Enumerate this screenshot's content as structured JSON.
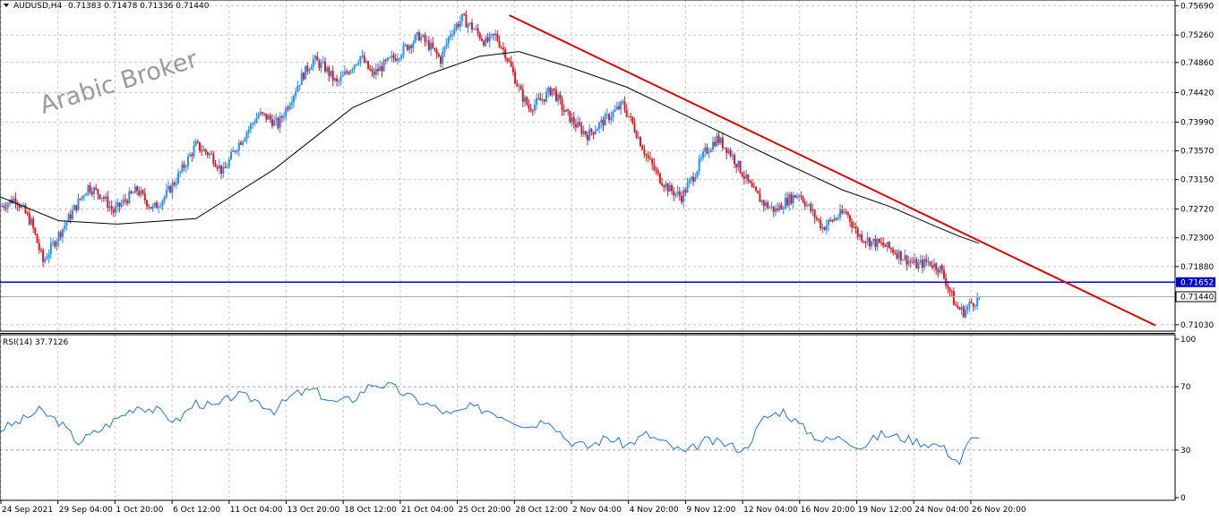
{
  "header": {
    "symbol": "AUDUSD,H4",
    "ohlc": "0.71383 0.71478 0.71336 0.71440"
  },
  "watermark": "Arabic Broker",
  "colors": {
    "bull": "#1e90ff",
    "bear": "#e8141a",
    "ma": "#000000",
    "trendline": "#e00000",
    "support": "#0000cc",
    "rsi": "#1e78d2",
    "grid": "#c8c8c8"
  },
  "chart_data": [
    {
      "type": "candlestick",
      "y_axis_labels": [
        "0.75690",
        "0.75260",
        "0.74860",
        "0.74420",
        "0.73990",
        "0.73570",
        "0.73150",
        "0.72720",
        "0.72300",
        "0.71880",
        "0.71440",
        "0.71030"
      ],
      "ylim": [
        0.7095,
        0.7572
      ],
      "x_axis_labels": [
        "24 Sep 2021",
        "29 Sep 04:00",
        "1 Oct 20:00",
        "6 Oct 12:00",
        "11 Oct 04:00",
        "13 Oct 20:00",
        "18 Oct 12:00",
        "21 Oct 04:00",
        "25 Oct 20:00",
        "28 Oct 12:00",
        "2 Nov 04:00",
        "4 Nov 20:00",
        "9 Nov 12:00",
        "12 Nov 04:00",
        "16 Nov 20:00",
        "19 Nov 12:00",
        "24 Nov 04:00",
        "26 Nov 20:00"
      ],
      "close_path": [
        [
          0,
          0.7275
        ],
        [
          8,
          0.7288
        ],
        [
          16,
          0.7252
        ],
        [
          22,
          0.7195
        ],
        [
          28,
          0.7225
        ],
        [
          35,
          0.7258
        ],
        [
          40,
          0.7282
        ],
        [
          45,
          0.7305
        ],
        [
          52,
          0.7292
        ],
        [
          58,
          0.7268
        ],
        [
          64,
          0.7285
        ],
        [
          70,
          0.73
        ],
        [
          78,
          0.7272
        ],
        [
          84,
          0.729
        ],
        [
          90,
          0.7315
        ],
        [
          95,
          0.734
        ],
        [
          100,
          0.7365
        ],
        [
          108,
          0.735
        ],
        [
          114,
          0.7325
        ],
        [
          120,
          0.736
        ],
        [
          126,
          0.7385
        ],
        [
          132,
          0.741
        ],
        [
          137,
          0.7405
        ],
        [
          142,
          0.7395
        ],
        [
          148,
          0.743
        ],
        [
          154,
          0.7465
        ],
        [
          160,
          0.749
        ],
        [
          166,
          0.7478
        ],
        [
          172,
          0.7455
        ],
        [
          178,
          0.7475
        ],
        [
          184,
          0.7495
        ],
        [
          190,
          0.7468
        ],
        [
          196,
          0.7482
        ],
        [
          202,
          0.7495
        ],
        [
          208,
          0.751
        ],
        [
          214,
          0.7525
        ],
        [
          220,
          0.7508
        ],
        [
          225,
          0.749
        ],
        [
          230,
          0.753
        ],
        [
          236,
          0.755
        ],
        [
          242,
          0.7535
        ],
        [
          248,
          0.7515
        ],
        [
          253,
          0.7525
        ],
        [
          258,
          0.75
        ],
        [
          262,
          0.747
        ],
        [
          266,
          0.744
        ],
        [
          270,
          0.742
        ],
        [
          276,
          0.743
        ],
        [
          282,
          0.7448
        ],
        [
          288,
          0.7415
        ],
        [
          294,
          0.7395
        ],
        [
          300,
          0.738
        ],
        [
          306,
          0.7395
        ],
        [
          312,
          0.741
        ],
        [
          318,
          0.7425
        ],
        [
          324,
          0.739
        ],
        [
          330,
          0.735
        ],
        [
          336,
          0.732
        ],
        [
          342,
          0.73
        ],
        [
          348,
          0.729
        ],
        [
          354,
          0.732
        ],
        [
          360,
          0.7355
        ],
        [
          366,
          0.7375
        ],
        [
          372,
          0.7358
        ],
        [
          378,
          0.733
        ],
        [
          384,
          0.73
        ],
        [
          390,
          0.728
        ],
        [
          396,
          0.727
        ],
        [
          402,
          0.7285
        ],
        [
          408,
          0.7295
        ],
        [
          414,
          0.727
        ],
        [
          420,
          0.7245
        ],
        [
          426,
          0.7258
        ],
        [
          432,
          0.7268
        ],
        [
          438,
          0.7235
        ],
        [
          444,
          0.7225
        ],
        [
          450,
          0.722
        ],
        [
          456,
          0.7212
        ],
        [
          462,
          0.72
        ],
        [
          468,
          0.719
        ],
        [
          474,
          0.7195
        ],
        [
          480,
          0.7185
        ],
        [
          484,
          0.716
        ],
        [
          488,
          0.713
        ],
        [
          492,
          0.7122
        ],
        [
          496,
          0.7135
        ],
        [
          500,
          0.714
        ]
      ],
      "moving_average": [
        [
          0,
          0.729
        ],
        [
          30,
          0.7255
        ],
        [
          60,
          0.725
        ],
        [
          100,
          0.7258
        ],
        [
          140,
          0.733
        ],
        [
          180,
          0.742
        ],
        [
          220,
          0.747
        ],
        [
          245,
          0.7495
        ],
        [
          265,
          0.7502
        ],
        [
          290,
          0.748
        ],
        [
          320,
          0.745
        ],
        [
          360,
          0.7395
        ],
        [
          400,
          0.734
        ],
        [
          430,
          0.73
        ],
        [
          455,
          0.7275
        ],
        [
          475,
          0.725
        ],
        [
          490,
          0.7232
        ],
        [
          500,
          0.7222
        ]
      ],
      "trendline": [
        [
          260,
          0.7555
        ],
        [
          590,
          0.7102
        ]
      ],
      "horizontal_line": 0.71652,
      "support_label": "0.71652",
      "price_label": "0.71440",
      "current_price": 0.7144,
      "last_index": 500,
      "x_range": [
        0,
        600
      ]
    },
    {
      "type": "line",
      "title": "RSI(14) 37.7126",
      "ylim": [
        0,
        100
      ],
      "y_axis_labels": [
        "100",
        "70",
        "30",
        "0"
      ],
      "levels": [
        70,
        30
      ],
      "values": [
        [
          0,
          43
        ],
        [
          10,
          48
        ],
        [
          20,
          55
        ],
        [
          30,
          48
        ],
        [
          40,
          35
        ],
        [
          50,
          42
        ],
        [
          60,
          50
        ],
        [
          70,
          58
        ],
        [
          80,
          55
        ],
        [
          90,
          48
        ],
        [
          100,
          60
        ],
        [
          110,
          57
        ],
        [
          120,
          65
        ],
        [
          130,
          62
        ],
        [
          140,
          55
        ],
        [
          150,
          65
        ],
        [
          160,
          68
        ],
        [
          170,
          60
        ],
        [
          180,
          62
        ],
        [
          190,
          72
        ],
        [
          200,
          70
        ],
        [
          210,
          63
        ],
        [
          220,
          58
        ],
        [
          230,
          52
        ],
        [
          240,
          57
        ],
        [
          250,
          55
        ],
        [
          260,
          50
        ],
        [
          270,
          45
        ],
        [
          280,
          50
        ],
        [
          290,
          36
        ],
        [
          300,
          32
        ],
        [
          310,
          38
        ],
        [
          320,
          33
        ],
        [
          330,
          40
        ],
        [
          340,
          34
        ],
        [
          350,
          28
        ],
        [
          360,
          36
        ],
        [
          370,
          34
        ],
        [
          380,
          30
        ],
        [
          390,
          50
        ],
        [
          400,
          55
        ],
        [
          410,
          44
        ],
        [
          420,
          36
        ],
        [
          430,
          38
        ],
        [
          440,
          32
        ],
        [
          450,
          40
        ],
        [
          460,
          38
        ],
        [
          470,
          35
        ],
        [
          480,
          33
        ],
        [
          490,
          22
        ],
        [
          495,
          36
        ],
        [
          500,
          37.7
        ]
      ]
    }
  ]
}
